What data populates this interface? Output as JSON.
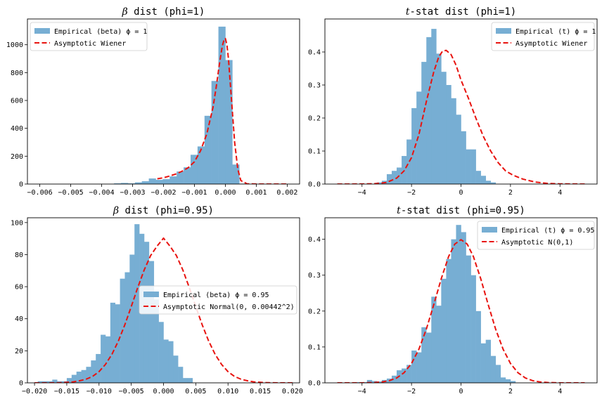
{
  "colors": {
    "hist": "#77aed3",
    "curve": "#e8130f",
    "axis": "#000000"
  },
  "chart_data": [
    {
      "type": "bar",
      "title": {
        "symbol": "β",
        "text": " dist (phi=1)"
      },
      "legend": {
        "position": "upper left",
        "entries": [
          "Empirical (beta) ϕ = 1",
          "Asymptotic Wiener"
        ]
      },
      "xlim": [
        -0.0064,
        0.0024
      ],
      "ylim": [
        0,
        1185
      ],
      "xticks": [
        -0.006,
        -0.005,
        -0.004,
        -0.003,
        -0.002,
        -0.001,
        0.0,
        0.001,
        0.002
      ],
      "xtick_labels": [
        "−0.006",
        "−0.005",
        "−0.004",
        "−0.003",
        "−0.002",
        "−0.001",
        "0.000",
        "0.001",
        "0.002"
      ],
      "yticks": [
        0,
        200,
        400,
        600,
        800,
        1000
      ],
      "ytick_labels": [
        "0",
        "200",
        "400",
        "600",
        "800",
        "1000"
      ],
      "bin_start": -0.0036,
      "bin_width": 0.000225,
      "values": [
        5,
        8,
        5,
        12,
        20,
        40,
        30,
        35,
        55,
        90,
        120,
        210,
        270,
        490,
        740,
        1130,
        890,
        140,
        3
      ],
      "curve": {
        "x": [
          -0.0022,
          -0.002,
          -0.0018,
          -0.0016,
          -0.0014,
          -0.0012,
          -0.001,
          -0.0008,
          -0.0006,
          -0.0004,
          -0.0003,
          -0.0002,
          -0.0001,
          -5e-05,
          0.0,
          5e-05,
          0.0001,
          0.0002,
          0.0003,
          0.0004,
          0.0005,
          0.0007,
          0.001,
          0.0015,
          0.002
        ],
        "y": [
          38,
          45,
          58,
          72,
          92,
          118,
          160,
          240,
          360,
          550,
          690,
          850,
          990,
          1030,
          1045,
          1000,
          900,
          600,
          300,
          110,
          25,
          2,
          0,
          0,
          0
        ]
      }
    },
    {
      "type": "bar",
      "title": {
        "symbol": "t",
        "text": "-stat dist (phi=1)"
      },
      "legend": {
        "position": "upper right",
        "entries": [
          "Empirical (t) ϕ = 1",
          "Asymptotic Wiener"
        ]
      },
      "xlim": [
        -5.5,
        5.5
      ],
      "ylim": [
        0,
        0.5
      ],
      "xticks": [
        -4,
        -2,
        0,
        2,
        4
      ],
      "xtick_labels": [
        "−4",
        "−2",
        "0",
        "2",
        "4"
      ],
      "yticks": [
        0.0,
        0.1,
        0.2,
        0.3,
        0.4
      ],
      "ytick_labels": [
        "0.0",
        "0.1",
        "0.2",
        "0.3",
        "0.4"
      ],
      "bin_start": -3.4,
      "bin_width": 0.2,
      "values": [
        0.005,
        0.01,
        0.03,
        0.04,
        0.05,
        0.085,
        0.135,
        0.23,
        0.28,
        0.37,
        0.445,
        0.47,
        0.395,
        0.34,
        0.3,
        0.26,
        0.21,
        0.16,
        0.105,
        0.105,
        0.04,
        0.025,
        0.01,
        0.005
      ],
      "curve": {
        "x": [
          -5,
          -4,
          -3.5,
          -3,
          -2.6,
          -2.3,
          -2,
          -1.7,
          -1.4,
          -1.1,
          -0.9,
          -0.75,
          -0.6,
          -0.4,
          -0.2,
          0,
          0.3,
          0.6,
          0.9,
          1.2,
          1.5,
          1.8,
          2.1,
          2.5,
          3,
          3.5,
          4,
          5
        ],
        "y": [
          0,
          0.0002,
          0.001,
          0.005,
          0.018,
          0.04,
          0.08,
          0.15,
          0.25,
          0.34,
          0.385,
          0.402,
          0.405,
          0.392,
          0.36,
          0.315,
          0.26,
          0.2,
          0.145,
          0.1,
          0.065,
          0.04,
          0.027,
          0.015,
          0.006,
          0.002,
          0.0005,
          0
        ]
      }
    },
    {
      "type": "bar",
      "title": {
        "symbol": "β",
        "text": " dist (phi=0.95)"
      },
      "legend": {
        "position": "center right",
        "entries": [
          "Empirical (beta) ϕ = 0.95",
          "Asymptotic Normal(0, 0.00442^2)"
        ]
      },
      "xlim": [
        -0.0211,
        0.0211
      ],
      "ylim": [
        0,
        103
      ],
      "xticks": [
        -0.02,
        -0.015,
        -0.01,
        -0.005,
        0.0,
        0.005,
        0.01,
        0.015,
        0.02
      ],
      "xtick_labels": [
        "−0.020",
        "−0.015",
        "−0.010",
        "−0.005",
        "0.000",
        "0.005",
        "0.010",
        "0.015",
        "0.020"
      ],
      "yticks": [
        0,
        20,
        40,
        60,
        80,
        100
      ],
      "ytick_labels": [
        "0",
        "20",
        "40",
        "60",
        "80",
        "100"
      ],
      "bin_start": -0.0195,
      "bin_width": 0.00075,
      "values": [
        1,
        1,
        1,
        2,
        1,
        1,
        3,
        5,
        7,
        8,
        10,
        14,
        18,
        30,
        29,
        50,
        49,
        65,
        69,
        80,
        99,
        93,
        88,
        76,
        52,
        38,
        27,
        26,
        17,
        10,
        3,
        3
      ],
      "curve": {
        "x": [
          -0.02,
          -0.018,
          -0.016,
          -0.014,
          -0.013,
          -0.012,
          -0.011,
          -0.01,
          -0.009,
          -0.008,
          -0.007,
          -0.006,
          -0.005,
          -0.004,
          -0.003,
          -0.002,
          -0.001,
          0.0,
          0.001,
          0.002,
          0.003,
          0.004,
          0.005,
          0.006,
          0.007,
          0.008,
          0.009,
          0.01,
          0.011,
          0.012,
          0.013,
          0.014,
          0.016,
          0.018,
          0.02
        ],
        "y": [
          0.0,
          0.0,
          0.1,
          0.6,
          1.3,
          2.3,
          4.0,
          7.0,
          11.5,
          17.8,
          26.1,
          36.2,
          47.6,
          59.4,
          70.4,
          79.4,
          85.3,
          90.3,
          85.3,
          79.4,
          70.4,
          59.4,
          47.6,
          36.2,
          26.1,
          17.8,
          11.5,
          7.0,
          4.0,
          2.3,
          1.3,
          0.6,
          0.1,
          0.0,
          0.0
        ]
      }
    },
    {
      "type": "bar",
      "title": {
        "symbol": "t",
        "text": "-stat dist (phi=0.95)"
      },
      "legend": {
        "position": "upper right",
        "entries": [
          "Empirical (t) ϕ = 0.95",
          "Asymptotic N(0,1)"
        ]
      },
      "xlim": [
        -5.5,
        5.5
      ],
      "ylim": [
        0,
        0.46
      ],
      "xticks": [
        -4,
        -2,
        0,
        2,
        4
      ],
      "xtick_labels": [
        "−4",
        "−2",
        "0",
        "2",
        "4"
      ],
      "yticks": [
        0.0,
        0.1,
        0.2,
        0.3,
        0.4
      ],
      "ytick_labels": [
        "0.0",
        "0.1",
        "0.2",
        "0.3",
        "0.4"
      ],
      "bin_start": -4.2,
      "bin_width": 0.2,
      "values": [
        0.002,
        0.002,
        0.008,
        0.005,
        0.004,
        0.008,
        0.012,
        0.02,
        0.035,
        0.04,
        0.05,
        0.09,
        0.085,
        0.155,
        0.14,
        0.24,
        0.215,
        0.29,
        0.345,
        0.4,
        0.44,
        0.42,
        0.355,
        0.3,
        0.2,
        0.11,
        0.12,
        0.075,
        0.05,
        0.015,
        0.01,
        0.005
      ],
      "curve": {
        "x": [
          -5,
          -4.5,
          -4,
          -3.5,
          -3.2,
          -2.9,
          -2.6,
          -2.3,
          -2,
          -1.7,
          -1.4,
          -1.1,
          -0.8,
          -0.5,
          -0.25,
          0,
          0.25,
          0.5,
          0.8,
          1.1,
          1.4,
          1.7,
          2,
          2.3,
          2.6,
          2.9,
          3.2,
          3.5,
          4,
          4.5,
          5
        ],
        "y": [
          0,
          0,
          0.0001,
          0.0009,
          0.0024,
          0.006,
          0.0136,
          0.0283,
          0.054,
          0.094,
          0.1497,
          0.2179,
          0.2897,
          0.3521,
          0.3867,
          0.3989,
          0.3867,
          0.3521,
          0.2897,
          0.2179,
          0.1497,
          0.094,
          0.054,
          0.0283,
          0.0136,
          0.006,
          0.0024,
          0.0009,
          0.0001,
          0,
          0
        ]
      }
    }
  ]
}
